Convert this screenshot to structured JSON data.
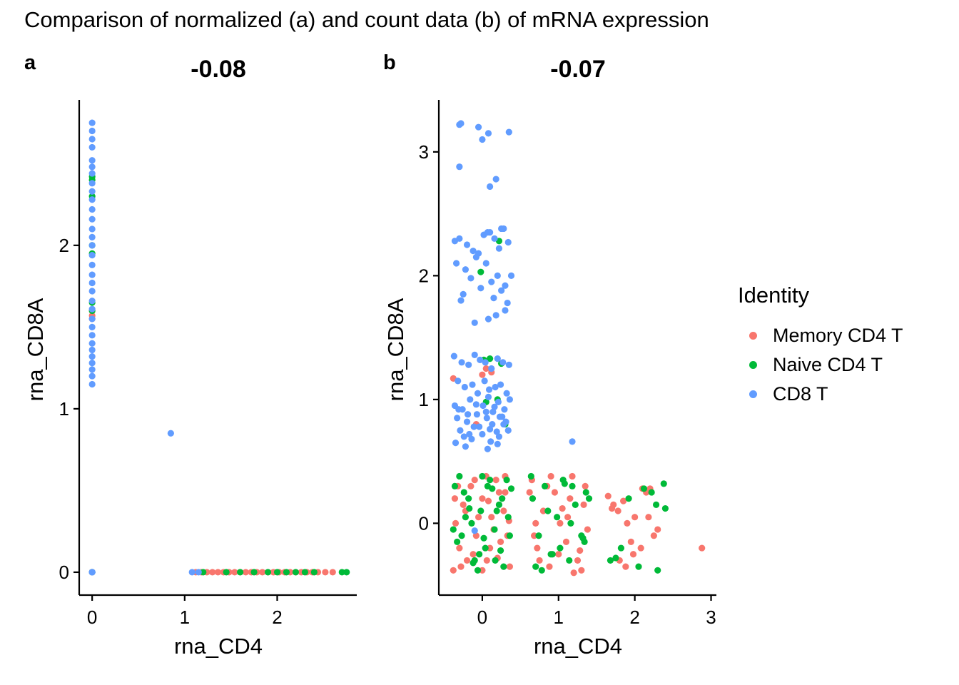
{
  "title": "Comparison of normalized (a) and count data (b) of mRNA expression",
  "legend": {
    "title": "Identity",
    "items": [
      {
        "label": "Memory CD4 T",
        "color": "#F8766D"
      },
      {
        "label": "Naive CD4 T",
        "color": "#00BA38"
      },
      {
        "label": "CD8 T",
        "color": "#619CFF"
      }
    ]
  },
  "chart_data": [
    {
      "type": "scatter",
      "panel": "a",
      "title": "-0.08",
      "xlabel": "rna_CD4",
      "ylabel": "rna_CD8A",
      "xlim": [
        -0.14,
        2.86
      ],
      "ylim": [
        -0.14,
        2.89
      ],
      "xticks": [
        0,
        1,
        2
      ],
      "yticks": [
        0,
        1,
        2
      ],
      "grid": false,
      "legend": "right",
      "series": [
        {
          "name": "Memory CD4 T",
          "color": "#F8766D",
          "x": [
            0,
            0,
            0,
            0,
            0,
            1.12,
            1.18,
            1.24,
            1.3,
            1.36,
            1.42,
            1.48,
            1.54,
            1.6,
            1.66,
            1.72,
            1.78,
            1.84,
            1.9,
            1.96,
            2.02,
            2.08,
            2.14,
            2.2,
            2.26,
            2.32,
            2.38,
            2.44,
            2.52,
            2.6
          ],
          "y": [
            0,
            1.55,
            1.57,
            1.6,
            0,
            0,
            0,
            0,
            0,
            0,
            0,
            0,
            0,
            0,
            0,
            0,
            0,
            0,
            0,
            0,
            0,
            0,
            0,
            0,
            0,
            0,
            0,
            0,
            0,
            0
          ]
        },
        {
          "name": "Naive CD4 T",
          "color": "#00BA38",
          "x": [
            0,
            0,
            0,
            0,
            0,
            0,
            0,
            0,
            0,
            1.2,
            1.45,
            1.6,
            1.75,
            1.9,
            2.0,
            2.1,
            2.2,
            2.3,
            2.4,
            2.7,
            2.75
          ],
          "y": [
            0,
            2.42,
            2.4,
            2.3,
            2.0,
            1.95,
            1.65,
            1.6,
            0,
            0,
            0,
            0,
            0,
            0,
            0,
            0,
            0,
            0,
            0,
            0,
            0
          ]
        },
        {
          "name": "CD8 T",
          "color": "#619CFF",
          "x": [
            0,
            0,
            0,
            0,
            0,
            0,
            0,
            0,
            0,
            0,
            0,
            0,
            0,
            0,
            0,
            0,
            0,
            0,
            0,
            0,
            0,
            0,
            0,
            0,
            0,
            0,
            0,
            0,
            0,
            0,
            0,
            0,
            0,
            0,
            0,
            0,
            0.85,
            1.08,
            1.15
          ],
          "y": [
            2.75,
            2.7,
            2.65,
            2.6,
            2.52,
            2.48,
            2.44,
            2.38,
            2.33,
            2.28,
            2.22,
            2.16,
            2.1,
            2.05,
            2.0,
            1.94,
            1.88,
            1.82,
            1.77,
            1.72,
            1.66,
            1.61,
            1.55,
            1.5,
            1.45,
            1.4,
            1.36,
            1.32,
            1.28,
            1.24,
            1.2,
            1.15,
            0.0,
            0.0,
            0.0,
            0.0,
            0.85,
            0,
            0
          ]
        }
      ]
    },
    {
      "type": "scatter",
      "panel": "b",
      "title": "-0.07",
      "xlabel": "rna_CD4",
      "ylabel": "rna_CD8A",
      "xlim": [
        -0.57,
        3.07
      ],
      "ylim": [
        -0.58,
        3.42
      ],
      "xticks": [
        0,
        1,
        2,
        3
      ],
      "yticks": [
        0,
        1,
        2,
        3
      ],
      "grid": false,
      "legend": "right",
      "series": [
        {
          "name": "Memory CD4 T",
          "color": "#F8766D",
          "x": [
            -0.38,
            -0.3,
            -0.22,
            -0.15,
            -0.08,
            0.0,
            0.06,
            0.12,
            0.18,
            0.24,
            0.3,
            0.36,
            -0.35,
            -0.25,
            -0.12,
            0.05,
            0.15,
            0.28,
            -0.32,
            -0.2,
            -0.05,
            0.1,
            0.22,
            0.33,
            -0.28,
            -0.1,
            0.08,
            0.2,
            0.3,
            -0.36,
            0.0,
            0.35,
            0.65,
            0.72,
            0.8,
            0.88,
            0.95,
            1.02,
            1.1,
            1.18,
            1.25,
            1.33,
            1.38,
            0.7,
            0.85,
            1.0,
            1.15,
            1.3,
            0.68,
            0.9,
            1.12,
            1.35,
            0.75,
            1.05,
            1.28,
            0.62,
            1.2,
            1.65,
            1.72,
            1.8,
            1.85,
            1.9,
            1.95,
            2.0,
            2.08,
            2.15,
            2.2,
            2.25,
            1.7,
            1.88,
            2.1,
            2.3,
            1.78,
            1.98,
            2.18,
            2.88,
            -0.38,
            0.0,
            0.05,
            0.12,
            -0.08
          ],
          "y": [
            -0.38,
            -0.2,
            0.1,
            0.3,
            -0.1,
            0.2,
            -0.3,
            0.05,
            0.35,
            -0.15,
            0.25,
            -0.35,
            0.0,
            0.15,
            -0.25,
            0.38,
            -0.05,
            0.1,
            0.3,
            -0.3,
            0.05,
            -0.2,
            0.25,
            -0.1,
            -0.35,
            0.35,
            0.18,
            -0.28,
            0.38,
            0.2,
            -0.38,
            0.02,
            0.35,
            -0.2,
            0.1,
            -0.35,
            0.25,
            0.0,
            -0.15,
            0.38,
            -0.3,
            0.15,
            -0.05,
            0.0,
            0.3,
            -0.25,
            0.2,
            -0.38,
            -0.1,
            0.38,
            0.05,
            0.3,
            -0.3,
            0.12,
            -0.22,
            0.25,
            -0.4,
            0.22,
            0.15,
            -0.3,
            0.18,
            0.0,
            -0.15,
            0.05,
            -0.2,
            0.25,
            0.28,
            -0.1,
            0.12,
            -0.35,
            0.28,
            -0.05,
            0.1,
            -0.25,
            0.05,
            -0.2,
            1.17,
            1.2,
            1.25,
            1.22,
            0.8
          ]
        },
        {
          "name": "Naive CD4 T",
          "color": "#00BA38",
          "x": [
            -0.36,
            -0.27,
            -0.18,
            -0.1,
            -0.02,
            0.04,
            0.1,
            0.16,
            0.22,
            0.28,
            0.34,
            -0.33,
            -0.24,
            -0.14,
            -0.04,
            0.07,
            0.17,
            0.26,
            0.36,
            -0.3,
            -0.17,
            -0.06,
            0.13,
            0.24,
            0.32,
            -0.22,
            0.02,
            0.19,
            -0.38,
            0.38,
            0.0,
            -0.12,
            0.66,
            0.74,
            0.82,
            0.9,
            0.98,
            1.06,
            1.14,
            1.22,
            1.3,
            1.36,
            0.7,
            0.86,
            1.02,
            1.18,
            1.34,
            0.64,
            0.92,
            1.16,
            1.4,
            0.78,
            1.08,
            1.32,
            1.68,
            1.82,
            1.92,
            2.05,
            2.22,
            2.3,
            2.38,
            2.4,
            1.75,
            2.12,
            2.28,
            0.1,
            0.05,
            0.2,
            0.3,
            0.22,
            -0.02,
            0.02,
            0.25
          ],
          "y": [
            0.3,
            -0.1,
            0.2,
            -0.3,
            0.1,
            -0.2,
            0.35,
            -0.05,
            0.15,
            -0.35,
            0.05,
            -0.15,
            0.25,
            0.0,
            -0.25,
            0.3,
            -0.3,
            0.2,
            -0.1,
            0.38,
            0.12,
            -0.38,
            0.28,
            -0.22,
            0.35,
            0.05,
            -0.12,
            0.1,
            -0.05,
            0.28,
            0.38,
            -0.32,
            0.2,
            -0.1,
            0.3,
            -0.25,
            0.05,
            0.35,
            -0.3,
            0.15,
            -0.1,
            0.25,
            -0.35,
            0.1,
            -0.2,
            0.3,
            -0.15,
            0.38,
            -0.25,
            0.0,
            0.2,
            -0.38,
            0.32,
            -0.12,
            -0.3,
            -0.2,
            0.2,
            -0.35,
            0.25,
            -0.38,
            0.32,
            0.12,
            -0.28,
            0.28,
            0.15,
            1.33,
            0.98,
            1.0,
            0.8,
            2.28,
            2.03,
            1.32,
            1.29
          ]
        },
        {
          "name": "CD8 T",
          "color": "#619CFF",
          "x": [
            -0.3,
            -0.28,
            -0.05,
            0.08,
            0.35,
            -0.3,
            0.0,
            0.1,
            0.18,
            0.07,
            0.25,
            -0.36,
            -0.3,
            -0.2,
            -0.12,
            -0.05,
            0.02,
            0.1,
            0.16,
            0.22,
            0.28,
            0.34,
            -0.34,
            -0.22,
            -0.15,
            -0.08,
            0.05,
            0.12,
            0.2,
            0.3,
            0.38,
            -0.25,
            -0.02,
            0.15,
            0.25,
            0.33,
            -0.28,
            -0.1,
            0.08,
            0.18,
            0.3,
            -0.37,
            -0.27,
            -0.18,
            -0.1,
            -0.03,
            0.04,
            0.12,
            0.2,
            0.27,
            0.35,
            -0.32,
            -0.23,
            -0.13,
            -0.06,
            0.03,
            0.09,
            0.17,
            0.24,
            0.32,
            -0.36,
            -0.26,
            -0.16,
            -0.07,
            0.01,
            0.08,
            0.14,
            0.21,
            0.29,
            0.36,
            -0.33,
            -0.2,
            -0.11,
            0.06,
            0.13,
            0.23,
            0.31,
            -0.29,
            -0.17,
            -0.04,
            0.1,
            0.19,
            0.28,
            -0.35,
            -0.24,
            -0.14,
            0.0,
            0.11,
            0.22,
            0.34,
            -0.31,
            -0.19,
            -0.08,
            0.05,
            0.16,
            0.26,
            -0.22,
            0.07,
            0.2,
            1.18,
            -0.1
          ],
          "y": [
            3.22,
            3.23,
            3.2,
            3.15,
            3.16,
            2.88,
            3.1,
            2.72,
            2.78,
            2.35,
            2.38,
            2.28,
            2.3,
            2.25,
            2.2,
            2.18,
            2.33,
            2.35,
            2.3,
            2.22,
            2.38,
            2.27,
            2.1,
            2.05,
            1.98,
            2.15,
            2.1,
            1.95,
            2.0,
            1.92,
            2.0,
            1.85,
            1.9,
            1.82,
            1.88,
            1.78,
            1.8,
            1.62,
            1.65,
            1.68,
            1.72,
            1.35,
            1.3,
            1.28,
            1.36,
            1.32,
            1.3,
            1.25,
            1.33,
            1.3,
            1.28,
            1.15,
            1.1,
            1.12,
            1.05,
            1.15,
            1.08,
            1.1,
            1.12,
            1.05,
            0.95,
            0.92,
            1.0,
            0.88,
            0.95,
            1.02,
            0.9,
            0.98,
            0.92,
            1.0,
            0.85,
            0.82,
            0.78,
            0.85,
            0.8,
            0.86,
            0.82,
            0.75,
            0.72,
            0.78,
            0.76,
            0.74,
            0.8,
            0.65,
            0.7,
            0.68,
            0.72,
            0.66,
            0.7,
            0.75,
            0.92,
            0.88,
            0.96,
            0.9,
            0.94,
            0.86,
            0.62,
            0.6,
            0.64,
            0.66,
            -0.06
          ]
        }
      ]
    }
  ]
}
